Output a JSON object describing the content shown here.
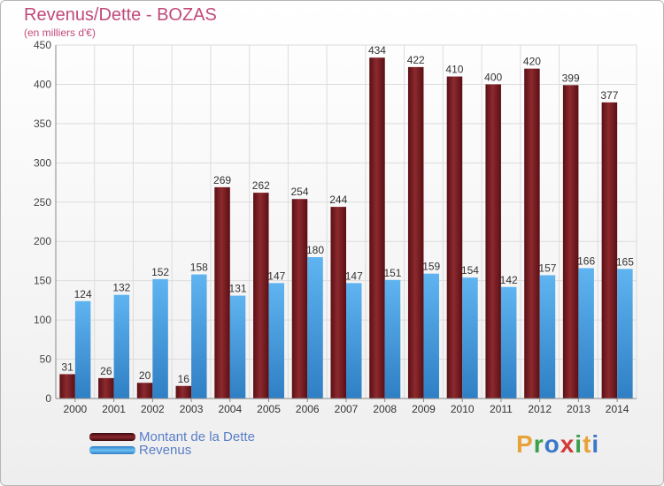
{
  "header": {
    "title": "Revenus/Dette - BOZAS",
    "subtitle": "(en milliers d'€)"
  },
  "legend": {
    "items": [
      {
        "label": "Montant de la Dette",
        "color": "#7a1f24"
      },
      {
        "label": "Revenus",
        "color": "#3a9ae0"
      }
    ]
  },
  "brand": {
    "letters": [
      "P",
      "r",
      "o",
      "x",
      "i",
      "t",
      "i"
    ],
    "colors": [
      "#e8a23a",
      "#3aa04a",
      "#3a78c8",
      "#d23a3a",
      "#3aa04a",
      "#e8a23a",
      "#3a78c8"
    ]
  },
  "chart_data": {
    "type": "bar",
    "categories": [
      "2000",
      "2001",
      "2002",
      "2003",
      "2004",
      "2005",
      "2006",
      "2007",
      "2008",
      "2009",
      "2010",
      "2011",
      "2012",
      "2013",
      "2014"
    ],
    "series": [
      {
        "name": "Montant de la Dette",
        "color": "#7a1f24",
        "values": [
          31,
          26,
          20,
          16,
          269,
          262,
          254,
          244,
          434,
          422,
          410,
          400,
          420,
          399,
          377
        ]
      },
      {
        "name": "Revenus",
        "color": "#3a9ae0",
        "values": [
          124,
          132,
          152,
          158,
          131,
          147,
          180,
          147,
          151,
          159,
          154,
          142,
          157,
          166,
          165
        ]
      }
    ],
    "ylim": [
      0,
      450
    ],
    "yticks": [
      0,
      50,
      100,
      150,
      200,
      250,
      300,
      350,
      400,
      450
    ],
    "grid": true,
    "legend_position": "bottom-left"
  }
}
